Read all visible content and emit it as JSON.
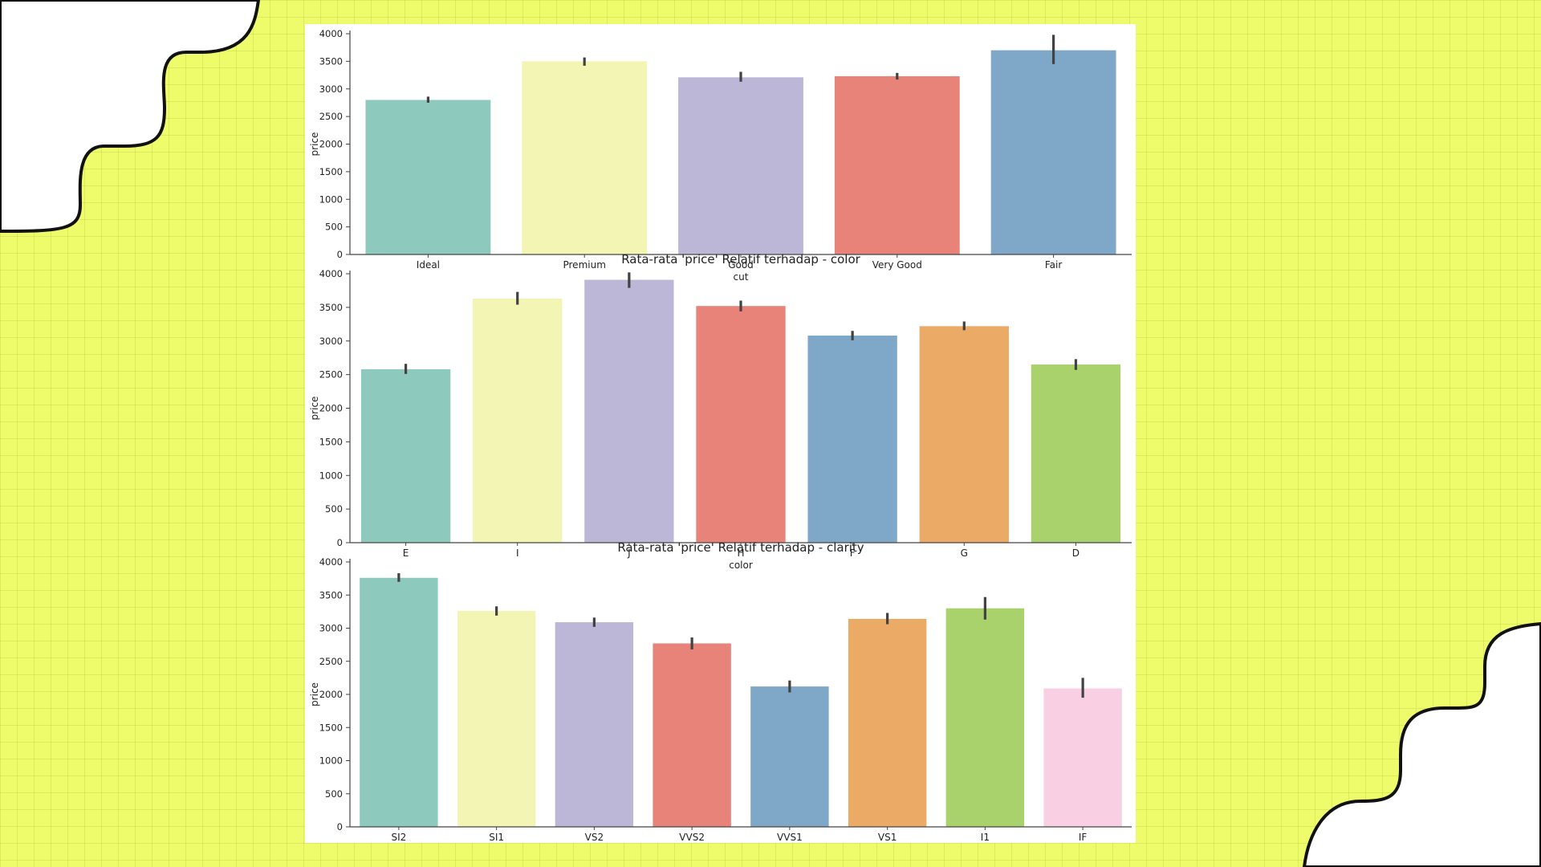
{
  "colors": {
    "background": "#eefb6a",
    "panel": "#ffffff",
    "axis": "#444444",
    "errorbar": "#424242",
    "palette": [
      "#8dc9bd",
      "#f3f5b5",
      "#bcb7d6",
      "#e8837a",
      "#7fa8c8",
      "#ecaa67",
      "#a9d16c",
      "#f8cfe3"
    ]
  },
  "chart_data": [
    {
      "type": "bar",
      "title": "",
      "xlabel": "cut",
      "ylabel": "price",
      "ylim": [
        0,
        4000
      ],
      "yticks": [
        "0",
        "500",
        "1000",
        "1500",
        "2000",
        "2500",
        "3000",
        "3500",
        "4000"
      ],
      "categories": [
        "Ideal",
        "Premium",
        "Good",
        "Very Good",
        "Fair"
      ],
      "values": [
        2800,
        3500,
        3210,
        3230,
        3700
      ],
      "error_low": [
        2750,
        3420,
        3130,
        3170,
        3450
      ],
      "error_high": [
        2860,
        3570,
        3310,
        3290,
        3980
      ]
    },
    {
      "type": "bar",
      "title": "Rata-rata 'price' Relatif terhadap - color",
      "xlabel": "color",
      "ylabel": "price",
      "ylim": [
        0,
        4000
      ],
      "yticks": [
        "0",
        "500",
        "1000",
        "1500",
        "2000",
        "2500",
        "3000",
        "3500",
        "4000"
      ],
      "categories": [
        "E",
        "I",
        "J",
        "H",
        "F",
        "G",
        "D"
      ],
      "values": [
        2580,
        3630,
        3910,
        3520,
        3080,
        3220,
        2650
      ],
      "error_low": [
        2510,
        3540,
        3790,
        3440,
        3010,
        3160,
        2570
      ],
      "error_high": [
        2660,
        3730,
        4020,
        3600,
        3150,
        3290,
        2730
      ]
    },
    {
      "type": "bar",
      "title": "Rata-rata 'price' Relatif terhadap - clarity",
      "xlabel": "",
      "ylabel": "price",
      "ylim": [
        0,
        4000
      ],
      "yticks": [
        "0",
        "500",
        "1000",
        "1500",
        "2000",
        "2500",
        "3000",
        "3500",
        "4000"
      ],
      "categories": [
        "SI2",
        "SI1",
        "VS2",
        "VVS2",
        "VVS1",
        "VS1",
        "I1",
        "IF"
      ],
      "values": [
        3760,
        3260,
        3090,
        2770,
        2120,
        3140,
        3300,
        2090
      ],
      "error_low": [
        3700,
        3190,
        3020,
        2680,
        2030,
        3060,
        3130,
        1950
      ],
      "error_high": [
        3830,
        3330,
        3160,
        2860,
        2210,
        3230,
        3470,
        2250
      ]
    }
  ]
}
